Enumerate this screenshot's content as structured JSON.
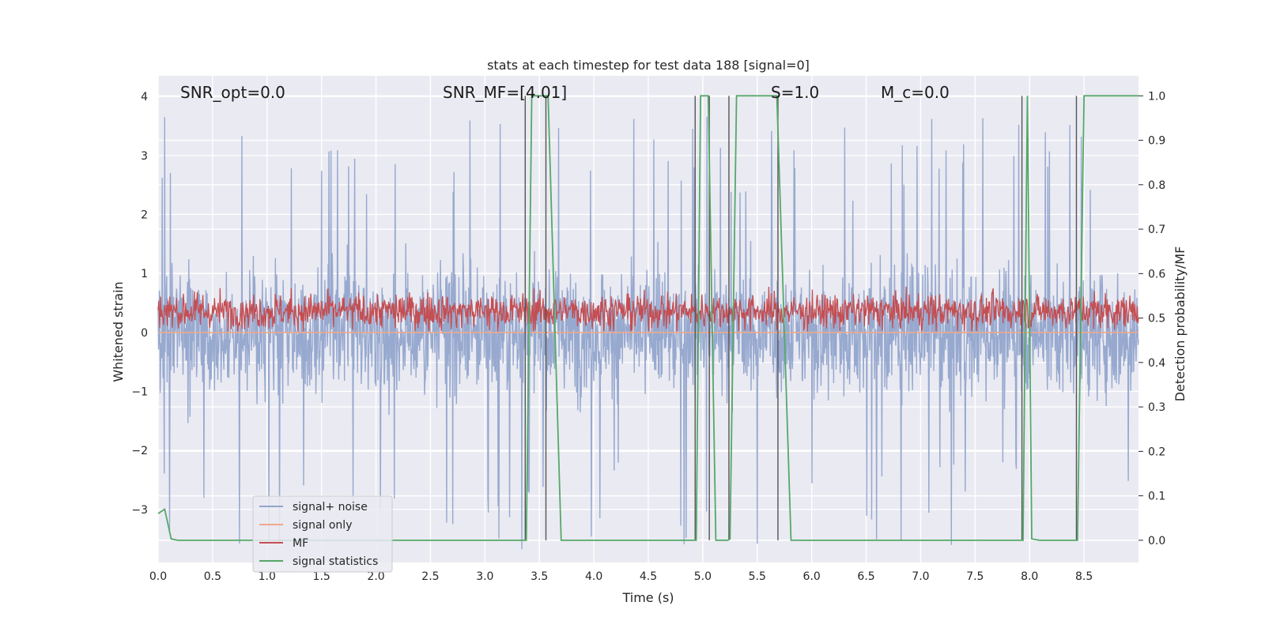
{
  "chart_data": {
    "type": "line",
    "title": "stats at each timestep for test data 188 [signal=0]",
    "xlabel": "Time (s)",
    "ylabel_left": "Whitened strain",
    "ylabel_right": "Detection probability/MF",
    "xlim": [
      0.0,
      9.0
    ],
    "ylim_left": [
      -3.9,
      4.35
    ],
    "ylim_right": [
      -0.05,
      1.045
    ],
    "x_ticks": [
      "0.0",
      "0.5",
      "1.0",
      "1.5",
      "2.0",
      "2.5",
      "3.0",
      "3.5",
      "4.0",
      "4.5",
      "5.0",
      "5.5",
      "6.0",
      "6.5",
      "7.0",
      "7.5",
      "8.0",
      "8.5"
    ],
    "y_left_ticks": [
      "−3",
      "−2",
      "−1",
      "0",
      "1",
      "2",
      "3",
      "4"
    ],
    "y_right_ticks": [
      "0.0",
      "0.1",
      "0.2",
      "0.3",
      "0.4",
      "0.5",
      "0.6",
      "0.7",
      "0.8",
      "0.9",
      "1.0"
    ],
    "grid": true,
    "legend_position": "lower-left",
    "annotations": [
      {
        "text": "SNR_opt=0.0",
        "x": 0.2
      },
      {
        "text": "SNR_MF=[4.01]",
        "x": 2.6
      },
      {
        "text": "S=1.0",
        "x": 5.65
      },
      {
        "text": "M_c=0.0",
        "x": 6.65
      }
    ],
    "series": [
      {
        "name": "signal+ noise",
        "color": "#92a5cc",
        "axis": "left",
        "style": "noise",
        "amplitude_range": [
          -3.7,
          3.7
        ]
      },
      {
        "name": "signal only",
        "color": "#eea98a",
        "axis": "left",
        "style": "flat",
        "value": 0.0
      },
      {
        "name": "MF",
        "color": "#c44e52",
        "axis": "right",
        "style": "noise",
        "range": [
          0.47,
          0.6
        ]
      },
      {
        "name": "signal statistics",
        "color": "#55a868",
        "axis": "right",
        "style": "line",
        "x": [
          0.0,
          0.06,
          0.12,
          0.18,
          3.38,
          3.43,
          3.58,
          3.7,
          4.94,
          4.98,
          5.05,
          5.12,
          5.23,
          5.25,
          5.31,
          5.68,
          5.81,
          7.94,
          7.98,
          8.02,
          8.09,
          8.44,
          8.5,
          9.0
        ],
        "y": [
          0.06,
          0.07,
          0.003,
          0.0,
          0.0,
          1.0,
          1.0,
          0.0,
          0.0,
          1.0,
          1.0,
          0.0,
          0.0,
          0.003,
          1.0,
          1.0,
          0.0,
          0.0,
          1.0,
          0.003,
          0.0,
          0.0,
          1.0,
          1.0
        ]
      }
    ],
    "vertical_markers": [
      3.37,
      3.56,
      4.93,
      5.06,
      5.24,
      5.69,
      7.93,
      8.43
    ]
  }
}
